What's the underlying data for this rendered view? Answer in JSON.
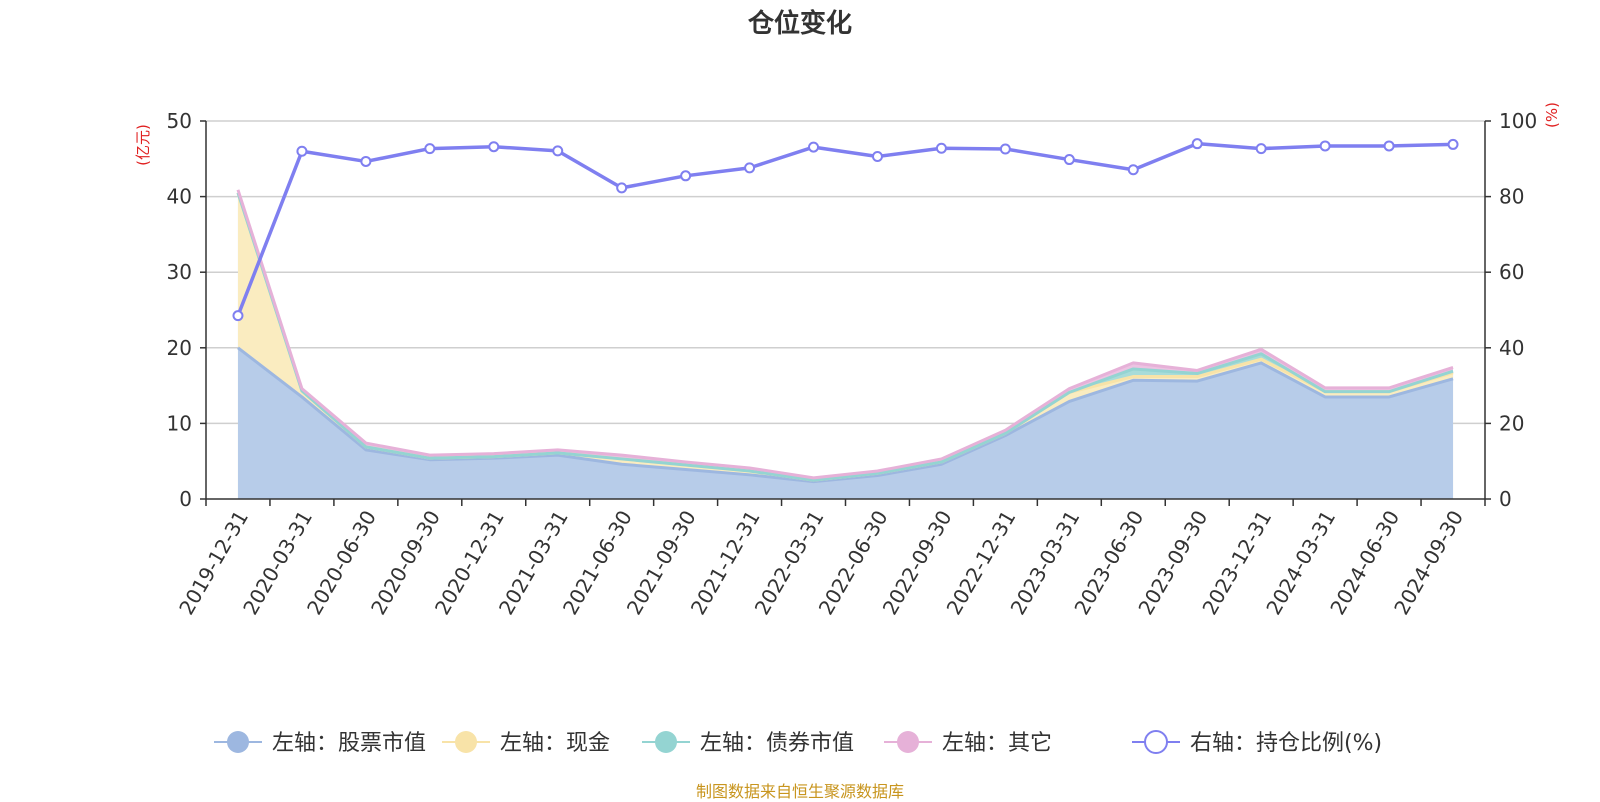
{
  "chart_data": {
    "type": "area",
    "title": "仓位变化",
    "left_axis_unit": "(亿元)",
    "right_axis_unit": "(%)",
    "left_ylim": [
      0,
      50
    ],
    "left_ticks": [
      0,
      10,
      20,
      30,
      40,
      50
    ],
    "right_ylim": [
      0,
      100
    ],
    "right_ticks": [
      0,
      20,
      40,
      60,
      80,
      100
    ],
    "categories": [
      "2019-12-31",
      "2020-03-31",
      "2020-06-30",
      "2020-09-30",
      "2020-12-31",
      "2021-03-31",
      "2021-06-30",
      "2021-09-30",
      "2021-12-31",
      "2022-03-31",
      "2022-06-30",
      "2022-09-30",
      "2022-12-31",
      "2023-03-31",
      "2023-06-30",
      "2023-09-30",
      "2023-12-31",
      "2024-03-31",
      "2024-06-30",
      "2024-09-30"
    ],
    "stacked_series": [
      {
        "name": "左轴：股票市值",
        "color": "#9db7e0",
        "fill": "#b7cce9",
        "values": [
          20.0,
          13.5,
          6.5,
          5.2,
          5.4,
          5.8,
          4.6,
          3.9,
          3.2,
          2.3,
          3.1,
          4.6,
          8.4,
          12.9,
          15.7,
          15.6,
          18.0,
          13.5,
          13.5,
          15.9
        ]
      },
      {
        "name": "左轴：现金",
        "color": "#f8e3a8",
        "fill": "#faecc0",
        "values": [
          20.5,
          0.8,
          0.4,
          0.2,
          0.2,
          0.3,
          0.7,
          0.6,
          0.5,
          0.2,
          0.3,
          0.3,
          0.3,
          1.2,
          0.5,
          0.6,
          0.5,
          0.7,
          0.7,
          0.8
        ]
      },
      {
        "name": "左轴：债券市值",
        "color": "#94d4d2",
        "fill": "#a8dcd9",
        "values": [
          0,
          0,
          0,
          0,
          0,
          0,
          0,
          0,
          0,
          0,
          0,
          0,
          0,
          0,
          1.0,
          0.4,
          0.7,
          0,
          0,
          0.2
        ]
      },
      {
        "name": "左轴：其它",
        "color": "#e6b1d8",
        "fill": "#ecc3e2",
        "values": [
          0.4,
          0.3,
          0.5,
          0.4,
          0.4,
          0.4,
          0.5,
          0.4,
          0.4,
          0.3,
          0.3,
          0.4,
          0.4,
          0.5,
          0.8,
          0.4,
          0.6,
          0.5,
          0.5,
          0.5
        ]
      }
    ],
    "line_series": {
      "name": "右轴：持仓比例(%)",
      "color": "#7f7ff0",
      "values": [
        48.5,
        92.0,
        89.3,
        92.7,
        93.2,
        92.1,
        82.3,
        85.5,
        87.6,
        93.1,
        90.6,
        92.8,
        92.6,
        89.8,
        87.1,
        94.0,
        92.7,
        93.4,
        93.4,
        93.8
      ]
    }
  },
  "footer_note": "制图数据来自恒生聚源数据库"
}
